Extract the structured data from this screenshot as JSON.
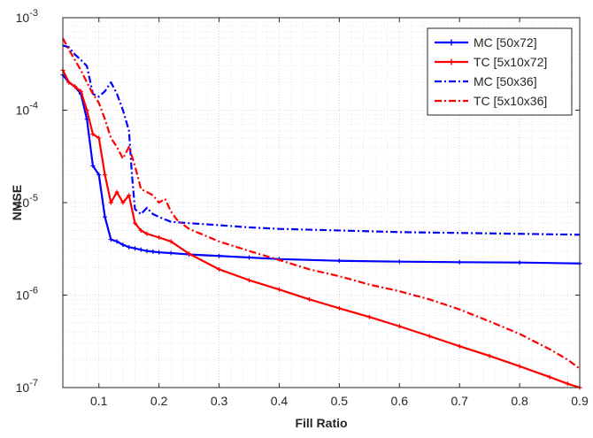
{
  "chart_data": {
    "type": "line",
    "title": "",
    "xlabel": "Fill Ratio",
    "ylabel": "NMSE",
    "xlim": [
      0.04,
      0.9
    ],
    "ylim": [
      1e-07,
      0.001
    ],
    "yscale": "log",
    "grid": true,
    "minor_grid": true,
    "legend_position": "top-right",
    "x_ticks": [
      "0.1",
      "0.2",
      "0.3",
      "0.4",
      "0.5",
      "0.6",
      "0.7",
      "0.8",
      "0.9"
    ],
    "y_ticks": [
      {
        "base": "10",
        "exp": "-7"
      },
      {
        "base": "10",
        "exp": "-6"
      },
      {
        "base": "10",
        "exp": "-5"
      },
      {
        "base": "10",
        "exp": "-4"
      },
      {
        "base": "10",
        "exp": "-3"
      }
    ],
    "series": [
      {
        "name": "MC [50x72]",
        "color": "#0000ff",
        "line_style": "solid",
        "marker": "plus",
        "x": [
          0.04,
          0.05,
          0.06,
          0.07,
          0.08,
          0.09,
          0.1,
          0.11,
          0.12,
          0.13,
          0.14,
          0.15,
          0.16,
          0.17,
          0.18,
          0.19,
          0.2,
          0.22,
          0.25,
          0.3,
          0.35,
          0.4,
          0.5,
          0.6,
          0.7,
          0.8,
          0.9
        ],
        "y": [
          0.00024,
          0.0002,
          0.00018,
          0.00015,
          8e-05,
          2.5e-05,
          2e-05,
          7e-06,
          4e-06,
          3.8e-06,
          3.5e-06,
          3.3e-06,
          3.2e-06,
          3.1e-06,
          3e-06,
          2.95e-06,
          2.9e-06,
          2.85e-06,
          2.75e-06,
          2.65e-06,
          2.55e-06,
          2.45e-06,
          2.35e-06,
          2.3e-06,
          2.27e-06,
          2.25e-06,
          2.2e-06
        ]
      },
      {
        "name": "TC [5x10x72]",
        "color": "#ff0000",
        "line_style": "solid",
        "marker": "plus",
        "x": [
          0.04,
          0.05,
          0.06,
          0.07,
          0.08,
          0.09,
          0.1,
          0.11,
          0.12,
          0.13,
          0.14,
          0.15,
          0.16,
          0.17,
          0.18,
          0.2,
          0.22,
          0.25,
          0.3,
          0.35,
          0.4,
          0.45,
          0.5,
          0.55,
          0.6,
          0.65,
          0.7,
          0.75,
          0.8,
          0.85,
          0.88,
          0.9
        ],
        "y": [
          0.00027,
          0.0002,
          0.00018,
          0.00016,
          0.0001,
          5.5e-05,
          5e-05,
          2e-05,
          1e-05,
          1.3e-05,
          1e-05,
          1.2e-05,
          6e-06,
          5e-06,
          4.6e-06,
          4.2e-06,
          3.8e-06,
          2.8e-06,
          1.9e-06,
          1.45e-06,
          1.15e-06,
          9e-07,
          7.2e-07,
          5.8e-07,
          4.6e-07,
          3.6e-07,
          2.8e-07,
          2.2e-07,
          1.7e-07,
          1.3e-07,
          1.1e-07,
          1e-07
        ]
      },
      {
        "name": "MC [50x36]",
        "color": "#0000ff",
        "line_style": "dashdot",
        "marker": "none",
        "x": [
          0.04,
          0.05,
          0.06,
          0.07,
          0.08,
          0.09,
          0.1,
          0.11,
          0.12,
          0.13,
          0.14,
          0.15,
          0.155,
          0.16,
          0.17,
          0.18,
          0.19,
          0.2,
          0.22,
          0.25,
          0.3,
          0.35,
          0.4,
          0.5,
          0.6,
          0.7,
          0.8,
          0.9
        ],
        "y": [
          0.0005,
          0.00048,
          0.0004,
          0.00035,
          0.0003,
          0.00015,
          0.00014,
          0.00016,
          0.0002,
          0.00015,
          0.0001,
          6e-05,
          2e-05,
          8.5e-06,
          7.5e-06,
          8.8e-06,
          7.5e-06,
          7e-06,
          6.2e-06,
          6e-06,
          5.7e-06,
          5.4e-06,
          5.2e-06,
          5e-06,
          4.8e-06,
          4.7e-06,
          4.6e-06,
          4.5e-06
        ]
      },
      {
        "name": "TC [5x10x36]",
        "color": "#ff0000",
        "line_style": "dashdot",
        "marker": "none",
        "x": [
          0.04,
          0.05,
          0.06,
          0.07,
          0.08,
          0.09,
          0.1,
          0.11,
          0.12,
          0.13,
          0.14,
          0.15,
          0.16,
          0.17,
          0.18,
          0.19,
          0.2,
          0.21,
          0.22,
          0.23,
          0.25,
          0.3,
          0.35,
          0.4,
          0.45,
          0.5,
          0.55,
          0.6,
          0.65,
          0.7,
          0.75,
          0.8,
          0.85,
          0.88,
          0.9
        ],
        "y": [
          0.0006,
          0.00045,
          0.00035,
          0.00027,
          0.0002,
          0.00015,
          0.00012,
          8e-05,
          5e-05,
          4e-05,
          3e-05,
          4e-05,
          2.5e-05,
          1.4e-05,
          1.3e-05,
          1.2e-05,
          1e-05,
          1.1e-05,
          8e-06,
          6.5e-06,
          5.2e-06,
          3.8e-06,
          3e-06,
          2.4e-06,
          1.9e-06,
          1.6e-06,
          1.3e-06,
          1.1e-06,
          9e-07,
          7e-07,
          5.2e-07,
          3.8e-07,
          2.6e-07,
          2e-07,
          1.6e-07
        ]
      }
    ]
  }
}
